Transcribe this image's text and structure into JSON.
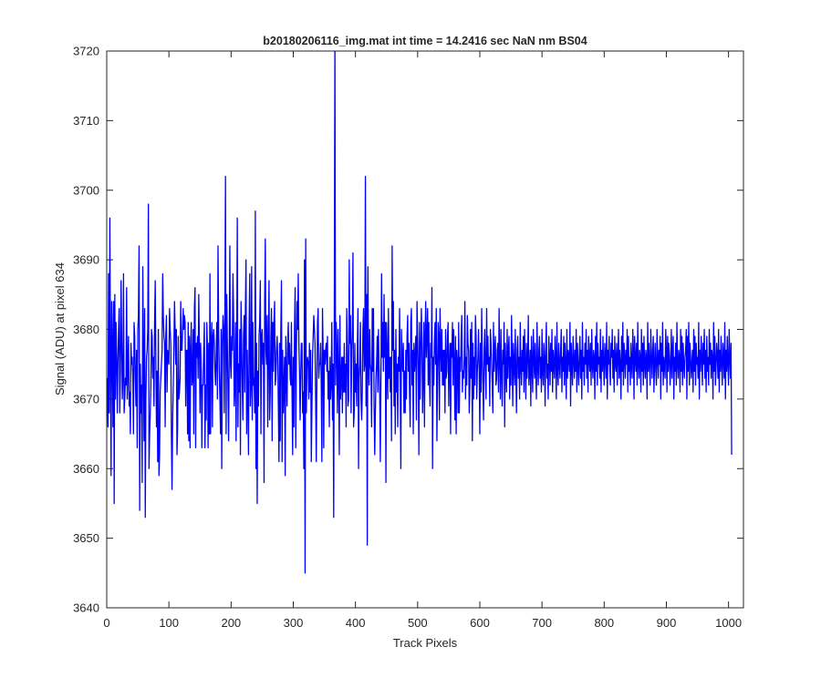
{
  "chart_data": {
    "type": "line",
    "title": "b20180206116_img.mat int time = 14.2416 sec  NaN nm BS04",
    "xlabel": "Track Pixels",
    "ylabel": "Signal (ADU) at pixel 634",
    "xlim": [
      0,
      1024
    ],
    "ylim": [
      3640,
      3720
    ],
    "xticks": [
      0,
      100,
      200,
      300,
      400,
      500,
      600,
      700,
      800,
      900,
      1000
    ],
    "yticks": [
      3640,
      3650,
      3660,
      3670,
      3680,
      3690,
      3700,
      3710,
      3720
    ],
    "grid": false,
    "legend": "none",
    "series": [
      {
        "color": "#0000ff",
        "x_start": 1,
        "x_step": 1,
        "y": [
          3673,
          3666,
          3688,
          3668,
          3696,
          3676,
          3659,
          3684,
          3678,
          3666,
          3684,
          3655,
          3685,
          3670,
          3681,
          3676,
          3668,
          3675,
          3680,
          3683,
          3668,
          3674,
          3687,
          3679,
          3670,
          3673,
          3688,
          3668,
          3670,
          3673,
          3672,
          3686,
          3670,
          3675,
          3679,
          3669,
          3671,
          3665,
          3678,
          3675,
          3676,
          3673,
          3665,
          3681,
          3679,
          3673,
          3669,
          3677,
          3663,
          3680,
          3682,
          3692,
          3654,
          3675,
          3668,
          3672,
          3658,
          3689,
          3676,
          3664,
          3683,
          3653,
          3670,
          3676,
          3677,
          3680,
          3698,
          3660,
          3665,
          3668,
          3672,
          3680,
          3679,
          3673,
          3676,
          3669,
          3681,
          3687,
          3675,
          3666,
          3674,
          3661,
          3680,
          3659,
          3662,
          3671,
          3673,
          3675,
          3677,
          3688,
          3682,
          3679,
          3678,
          3666,
          3679,
          3682,
          3671,
          3677,
          3676,
          3675,
          3683,
          3680,
          3678,
          3665,
          3657,
          3667,
          3672,
          3677,
          3684,
          3680,
          3675,
          3680,
          3662,
          3666,
          3679,
          3670,
          3671,
          3673,
          3684,
          3677,
          3677,
          3680,
          3683,
          3680,
          3682,
          3681,
          3669,
          3677,
          3677,
          3665,
          3681,
          3664,
          3679,
          3663,
          3677,
          3681,
          3672,
          3673,
          3680,
          3665,
          3683,
          3686,
          3663,
          3678,
          3676,
          3679,
          3673,
          3685,
          3678,
          3668,
          3678,
          3674,
          3663,
          3672,
          3672,
          3677,
          3681,
          3663,
          3672,
          3667,
          3681,
          3677,
          3663,
          3678,
          3665,
          3688,
          3665,
          3678,
          3681,
          3666,
          3679,
          3680,
          3678,
          3674,
          3672,
          3676,
          3681,
          3670,
          3692,
          3680,
          3674,
          3670,
          3665,
          3680,
          3660,
          3678,
          3682,
          3680,
          3668,
          3683,
          3702,
          3665,
          3685,
          3678,
          3671,
          3664,
          3677,
          3692,
          3675,
          3673,
          3679,
          3677,
          3688,
          3682,
          3669,
          3672,
          3681,
          3664,
          3677,
          3696,
          3666,
          3675,
          3671,
          3680,
          3662,
          3684,
          3678,
          3672,
          3667,
          3679,
          3682,
          3671,
          3683,
          3690,
          3665,
          3677,
          3670,
          3662,
          3681,
          3688,
          3669,
          3672,
          3689,
          3667,
          3681,
          3672,
          3673,
          3668,
          3697,
          3660,
          3678,
          3655,
          3674,
          3669,
          3679,
          3681,
          3687,
          3665,
          3679,
          3680,
          3675,
          3678,
          3658,
          3684,
          3693,
          3677,
          3675,
          3682,
          3666,
          3678,
          3687,
          3667,
          3671,
          3679,
          3683,
          3664,
          3681,
          3674,
          3681,
          3684,
          3672,
          3673,
          3677,
          3679,
          3676,
          3669,
          3661,
          3678,
          3664,
          3680,
          3687,
          3661,
          3677,
          3668,
          3672,
          3676,
          3659,
          3679,
          3674,
          3669,
          3678,
          3681,
          3675,
          3678,
          3673,
          3672,
          3681,
          3671,
          3662,
          3676,
          3666,
          3680,
          3686,
          3663,
          3677,
          3684,
          3680,
          3688,
          3678,
          3674,
          3667,
          3673,
          3678,
          3678,
          3668,
          3671,
          3660,
          3690,
          3645,
          3693,
          3668,
          3675,
          3676,
          3675,
          3670,
          3678,
          3671,
          3677,
          3661,
          3669,
          3676,
          3679,
          3682,
          3680,
          3678,
          3670,
          3661,
          3673,
          3681,
          3683,
          3673,
          3675,
          3675,
          3678,
          3672,
          3661,
          3683,
          3677,
          3663,
          3677,
          3675,
          3677,
          3678,
          3674,
          3679,
          3670,
          3674,
          3666,
          3676,
          3670,
          3672,
          3681,
          3667,
          3675,
          3653,
          3683,
          3722,
          3672,
          3681,
          3677,
          3668,
          3680,
          3674,
          3662,
          3682,
          3670,
          3673,
          3676,
          3668,
          3676,
          3671,
          3678,
          3671,
          3675,
          3666,
          3683,
          3677,
          3669,
          3670,
          3690,
          3678,
          3682,
          3668,
          3677,
          3680,
          3691,
          3666,
          3668,
          3678,
          3671,
          3675,
          3669,
          3677,
          3683,
          3660,
          3673,
          3675,
          3681,
          3670,
          3667,
          3671,
          3680,
          3683,
          3674,
          3675,
          3702,
          3669,
          3685,
          3649,
          3689,
          3676,
          3672,
          3680,
          3675,
          3674,
          3666,
          3683,
          3674,
          3683,
          3669,
          3662,
          3668,
          3673,
          3675,
          3679,
          3671,
          3680,
          3675,
          3671,
          3661,
          3673,
          3688,
          3676,
          3681,
          3674,
          3685,
          3676,
          3681,
          3658,
          3681,
          3676,
          3670,
          3683,
          3673,
          3676,
          3671,
          3676,
          3664,
          3692,
          3677,
          3684,
          3669,
          3677,
          3665,
          3680,
          3671,
          3675,
          3666,
          3676,
          3674,
          3683,
          3672,
          3660,
          3680,
          3676,
          3674,
          3678,
          3668,
          3674,
          3668,
          3677,
          3670,
          3679,
          3682,
          3674,
          3678,
          3671,
          3666,
          3681,
          3683,
          3672,
          3677,
          3665,
          3678,
          3674,
          3676,
          3679,
          3667,
          3684,
          3679,
          3674,
          3662,
          3681,
          3670,
          3677,
          3683,
          3678,
          3668,
          3673,
          3681,
          3666,
          3679,
          3684,
          3676,
          3679,
          3683,
          3672,
          3681,
          3673,
          3669,
          3678,
          3676,
          3686,
          3660,
          3676,
          3672,
          3678,
          3681,
          3675,
          3683,
          3664,
          3673,
          3681,
          3679,
          3667,
          3683,
          3678,
          3674,
          3680,
          3672,
          3677,
          3672,
          3677,
          3668,
          3680,
          3673,
          3674,
          3679,
          3681,
          3669,
          3675,
          3678,
          3665,
          3678,
          3676,
          3681,
          3672,
          3680,
          3675,
          3667,
          3679,
          3665,
          3677,
          3675,
          3668,
          3681,
          3668,
          3676,
          3674,
          3679,
          3682,
          3671,
          3674,
          3673,
          3676,
          3684,
          3670,
          3676,
          3672,
          3682,
          3678,
          3677,
          3668,
          3672,
          3680,
          3673,
          3681,
          3664,
          3678,
          3670,
          3676,
          3672,
          3682,
          3679,
          3670,
          3674,
          3676,
          3680,
          3674,
          3665,
          3678,
          3671,
          3683,
          3676,
          3672,
          3667,
          3677,
          3680,
          3674,
          3670,
          3683,
          3675,
          3679,
          3674,
          3676,
          3669,
          3680,
          3678,
          3675,
          3672,
          3668,
          3681,
          3674,
          3677,
          3679,
          3672,
          3673,
          3677,
          3678,
          3671,
          3683,
          3676,
          3670,
          3680,
          3674,
          3669,
          3677,
          3675,
          3681,
          3666,
          3678,
          3674,
          3671,
          3680,
          3673,
          3677,
          3679,
          3670,
          3676,
          3672,
          3682,
          3676,
          3669,
          3678,
          3675,
          3672,
          3680,
          3674,
          3668,
          3677,
          3679,
          3673,
          3676,
          3670,
          3681,
          3675,
          3672,
          3677,
          3674,
          3679,
          3671,
          3680,
          3675,
          3670,
          3678,
          3673,
          3676,
          3682,
          3672,
          3674,
          3677,
          3669,
          3679,
          3675,
          3671,
          3680,
          3676,
          3673,
          3678,
          3674,
          3670,
          3681,
          3675,
          3672,
          3677,
          3679,
          3673,
          3676,
          3671,
          3680,
          3674,
          3672,
          3678,
          3676,
          3669,
          3677,
          3681,
          3673,
          3675,
          3670,
          3679,
          3676,
          3672,
          3678,
          3674,
          3680,
          3671,
          3677,
          3675,
          3673,
          3679,
          3676,
          3670,
          3681,
          3674,
          3672,
          3678,
          3675,
          3673,
          3677,
          3680,
          3671,
          3676,
          3674,
          3679,
          3672,
          3678,
          3675,
          3670,
          3680,
          3673,
          3677,
          3676,
          3674,
          3681,
          3669,
          3678,
          3675,
          3672,
          3679,
          3676,
          3673,
          3677,
          3674,
          3680,
          3671,
          3678,
          3675,
          3672,
          3676,
          3679,
          3673,
          3677,
          3670,
          3681,
          3674,
          3676,
          3672,
          3678,
          3675,
          3680,
          3673,
          3677,
          3671,
          3679,
          3676,
          3674,
          3678,
          3672,
          3680,
          3675,
          3673,
          3677,
          3676,
          3670,
          3679,
          3674,
          3681,
          3672,
          3678,
          3675,
          3676,
          3673,
          3680,
          3671,
          3677,
          3674,
          3679,
          3675,
          3672,
          3678,
          3676,
          3673,
          3681,
          3670,
          3677,
          3675,
          3679,
          3674,
          3672,
          3678,
          3676,
          3680,
          3673,
          3677,
          3671,
          3679,
          3675,
          3674,
          3678,
          3672,
          3676,
          3680,
          3673,
          3677,
          3675,
          3670,
          3679,
          3674,
          3681,
          3672,
          3678,
          3676,
          3673,
          3677,
          3675,
          3680,
          3671,
          3679,
          3674,
          3676,
          3672,
          3678,
          3675,
          3673,
          3680,
          3677,
          3670,
          3679,
          3676,
          3674,
          3678,
          3672,
          3681,
          3675,
          3673,
          3677,
          3676,
          3671,
          3680,
          3674,
          3678,
          3672,
          3679,
          3675,
          3673,
          3677,
          3676,
          3670,
          3681,
          3674,
          3678,
          3675,
          3672,
          3680,
          3676,
          3673,
          3677,
          3679,
          3671,
          3675,
          3678,
          3674,
          3672,
          3680,
          3676,
          3673,
          3677,
          3675,
          3679,
          3670,
          3678,
          3674,
          3681,
          3672,
          3676,
          3675,
          3673,
          3680,
          3677,
          3671,
          3679,
          3674,
          3678,
          3676,
          3672,
          3675,
          3680,
          3673,
          3677,
          3679,
          3670,
          3676,
          3674,
          3678,
          3672,
          3681,
          3675,
          3673,
          3677,
          3676,
          3671,
          3680,
          3674,
          3679,
          3672,
          3678,
          3675,
          3673,
          3676,
          3677,
          3680,
          3670,
          3679,
          3674,
          3681,
          3672,
          3678,
          3676,
          3673,
          3675,
          3677,
          3671,
          3680,
          3674,
          3679,
          3672,
          3678,
          3675,
          3676,
          3673,
          3681,
          3670,
          3677,
          3674,
          3679,
          3676,
          3672,
          3678,
          3675,
          3680,
          3673,
          3677,
          3671,
          3679,
          3674,
          3676,
          3672,
          3680,
          3675,
          3678,
          3673,
          3677,
          3676,
          3670,
          3681,
          3674,
          3679,
          3672,
          3675,
          3678,
          3676,
          3673,
          3680,
          3671,
          3677,
          3674,
          3679,
          3675,
          3672,
          3678,
          3676,
          3673,
          3681,
          3670,
          3677,
          3674,
          3679,
          3675,
          3672,
          3680,
          3676,
          3673,
          3678,
          3662
        ]
      }
    ]
  }
}
